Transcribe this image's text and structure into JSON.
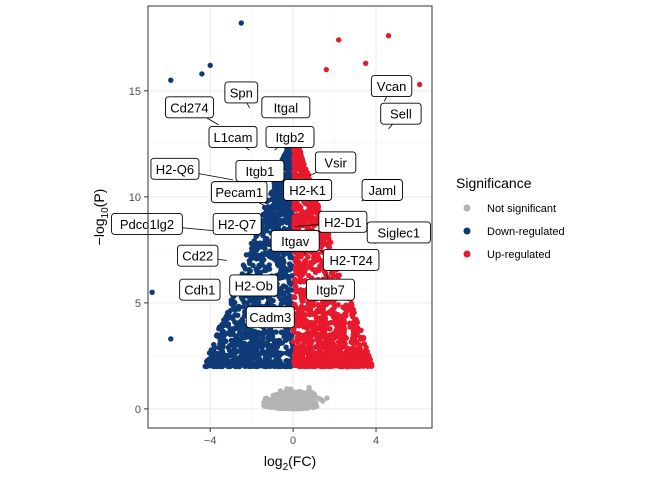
{
  "chart_data": {
    "type": "scatter",
    "subtype": "volcano",
    "xlabel": "log2(FC)",
    "ylabel": "-log10(P)",
    "xlim": [
      -7,
      6.7
    ],
    "ylim": [
      -0.9,
      19
    ],
    "x_ticks": [
      -4,
      0,
      4
    ],
    "y_ticks": [
      0,
      5,
      10,
      15
    ],
    "grid": true,
    "legend": {
      "title": "Significance",
      "position": "right",
      "entries": [
        {
          "name": "Not significant",
          "color": "#b3b3b3"
        },
        {
          "name": "Down-regulated",
          "color": "#0f3a78"
        },
        {
          "name": "Up-regulated",
          "color": "#e8192c"
        }
      ]
    },
    "outlier_points": [
      {
        "x": -2.5,
        "y": 18.2,
        "group": "down"
      },
      {
        "x": -4,
        "y": 16.2,
        "group": "down"
      },
      {
        "x": -5.9,
        "y": 15.5,
        "group": "down"
      },
      {
        "x": -4.4,
        "y": 15.8,
        "group": "down"
      },
      {
        "x": -6.8,
        "y": 5.5,
        "group": "down"
      },
      {
        "x": -5.9,
        "y": 3.3,
        "group": "down"
      },
      {
        "x": 2.2,
        "y": 17.4,
        "group": "up"
      },
      {
        "x": 4.6,
        "y": 17.6,
        "group": "up"
      },
      {
        "x": 6.1,
        "y": 15.3,
        "group": "up"
      },
      {
        "x": 1.6,
        "y": 16,
        "group": "up"
      },
      {
        "x": 3.5,
        "y": 16.3,
        "group": "up"
      },
      {
        "x": 5.4,
        "y": 14.9,
        "group": "up"
      }
    ],
    "labels": [
      {
        "text": "Spn",
        "lx": -2.5,
        "ly": 14.9,
        "px": -2.1,
        "py": 14.2
      },
      {
        "text": "Itgal",
        "lx": -0.35,
        "ly": 14.2,
        "px": -1.4,
        "py": 13.8
      },
      {
        "text": "Cd274",
        "lx": -5,
        "ly": 14.2,
        "px": -3.6,
        "py": 13.4
      },
      {
        "text": "Vcan",
        "lx": 4.75,
        "ly": 15.2,
        "px": 4.4,
        "py": 14.5
      },
      {
        "text": "Sell",
        "lx": 5.2,
        "ly": 13.9,
        "px": 4.6,
        "py": 13.2
      },
      {
        "text": "L1cam",
        "lx": -2.9,
        "ly": 12.8,
        "px": -2.1,
        "py": 12.2
      },
      {
        "text": "Itgb2",
        "lx": -0.15,
        "ly": 12.8,
        "px": -0.9,
        "py": 12.2
      },
      {
        "text": "Vsir",
        "lx": 2.05,
        "ly": 11.6,
        "px": 0.8,
        "py": 11
      },
      {
        "text": "H2-Q6",
        "lx": -5.7,
        "ly": 11.3,
        "px": -2.9,
        "py": 10.8
      },
      {
        "text": "Itgb1",
        "lx": -1.6,
        "ly": 11.2,
        "px": -2.5,
        "py": 10.6
      },
      {
        "text": "Jaml",
        "lx": 4.3,
        "ly": 10.3,
        "px": 3.3,
        "py": 9.8
      },
      {
        "text": "H2-K1",
        "lx": 0.7,
        "ly": 10.3,
        "px": -0.3,
        "py": 9.8
      },
      {
        "text": "Pecam1",
        "lx": -2.6,
        "ly": 10.2,
        "px": -1.4,
        "py": 9.6
      },
      {
        "text": "H2-D1",
        "lx": 2.4,
        "ly": 8.8,
        "px": 0.1,
        "py": 8.6
      },
      {
        "text": "Pdcd1lg2",
        "lx": -7.05,
        "ly": 8.7,
        "px": -3.8,
        "py": 8.4
      },
      {
        "text": "H2-Q7",
        "lx": -2.7,
        "ly": 8.7,
        "px": -1.6,
        "py": 8.4
      },
      {
        "text": "Siglec1",
        "lx": 5.1,
        "ly": 8.3,
        "px": 3.9,
        "py": 7.8
      },
      {
        "text": "Itgav",
        "lx": 0.1,
        "ly": 7.9,
        "px": 0.6,
        "py": 7.3
      },
      {
        "text": "Cd22",
        "lx": -4.6,
        "ly": 7.2,
        "px": -3.2,
        "py": 7
      },
      {
        "text": "H2-T24",
        "lx": 2.8,
        "ly": 7.0,
        "px": 1.2,
        "py": 7.5
      },
      {
        "text": "Cdh1",
        "lx": -4.5,
        "ly": 5.6,
        "px": -3.7,
        "py": 5.8
      },
      {
        "text": "H2-Ob",
        "lx": -1.9,
        "ly": 5.8,
        "px": -2.2,
        "py": 6.5
      },
      {
        "text": "Itgb7",
        "lx": 1.8,
        "ly": 5.6,
        "px": 1.6,
        "py": 6.4
      },
      {
        "text": "Cadm3",
        "lx": -1.1,
        "ly": 4.3,
        "px": -1.3,
        "py": 5.3
      }
    ]
  }
}
